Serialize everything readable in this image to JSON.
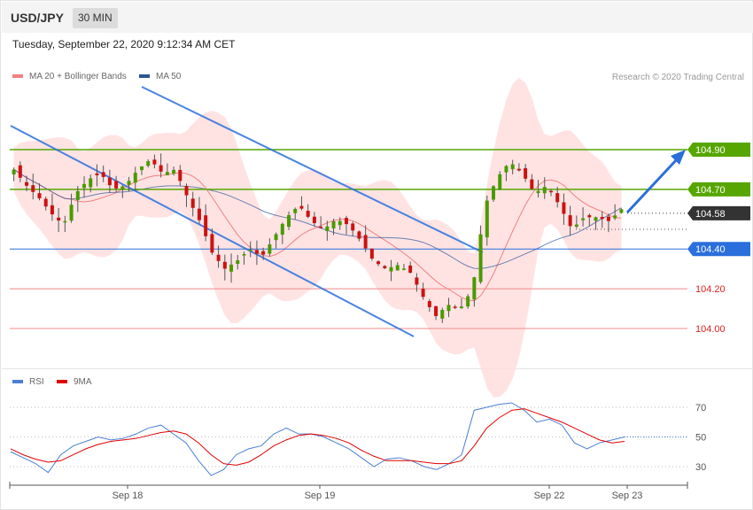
{
  "header": {
    "symbol": "USD/JPY",
    "timeframe": "30 MIN"
  },
  "datetime": "Tuesday, September 22, 2020 9:12:34 AM CET",
  "legend": {
    "ma20": {
      "label": "MA 20 + Bollinger Bands",
      "color": "#f08080"
    },
    "ma50": {
      "label": "MA 50",
      "color": "#2e5597"
    }
  },
  "credit": "Research © 2020 Trading Central",
  "rsi_legend": {
    "rsi": {
      "label": "RSI",
      "color": "#4a7fd4"
    },
    "ma9": {
      "label": "9MA",
      "color": "#e00000"
    }
  },
  "colors": {
    "green": "#57a600",
    "blue": "#2a6fdb",
    "red": "#e02020",
    "dark": "#333333",
    "up": "#4a9a00",
    "down": "#cc1111",
    "band": "#ffd9d9"
  },
  "levels": [
    {
      "value": 104.9,
      "label": "104.90",
      "kind": "resistance"
    },
    {
      "value": 104.7,
      "label": "104.70",
      "kind": "resistance"
    },
    {
      "value": 104.58,
      "label": "104.58",
      "kind": "last"
    },
    {
      "value": 104.4,
      "label": "104.40",
      "kind": "pivot"
    },
    {
      "value": 104.2,
      "label": "104.20",
      "kind": "support"
    },
    {
      "value": 104.0,
      "label": "104.00",
      "kind": "support"
    }
  ],
  "chart_data": [
    {
      "type": "candlestick",
      "title": "USD/JPY",
      "ylim": [
        103.8,
        105.2
      ],
      "x_ticks": [
        "Sep 18",
        "Sep 19",
        "Sep 22",
        "Sep 23"
      ],
      "price_samples": [
        104.8,
        104.72,
        104.66,
        104.58,
        104.52,
        104.68,
        104.75,
        104.78,
        104.7,
        104.72,
        104.8,
        104.85,
        104.78,
        104.8,
        104.66,
        104.54,
        104.38,
        104.3,
        104.34,
        104.4,
        104.36,
        104.46,
        104.56,
        104.62,
        104.54,
        104.5,
        104.55,
        104.52,
        104.44,
        104.34,
        104.3,
        104.32,
        104.28,
        104.16,
        104.06,
        104.12,
        104.1,
        104.2,
        104.62,
        104.76,
        104.84,
        104.78,
        104.68,
        104.72,
        104.62,
        104.5,
        104.56,
        104.56,
        104.54,
        104.6
      ],
      "last_price": 104.58,
      "series": [
        {
          "name": "MA 20 + Bollinger Bands"
        },
        {
          "name": "MA 50"
        }
      ]
    },
    {
      "type": "line",
      "title": "RSI",
      "ylim": [
        20,
        80
      ],
      "y_ticks": [
        30,
        50,
        70
      ],
      "series": [
        {
          "name": "RSI",
          "values": [
            40,
            36,
            32,
            26,
            38,
            44,
            47,
            50,
            48,
            49,
            52,
            56,
            58,
            52,
            46,
            34,
            24,
            28,
            38,
            42,
            44,
            52,
            56,
            52,
            52,
            50,
            46,
            42,
            36,
            30,
            35,
            36,
            34,
            30,
            28,
            32,
            38,
            68,
            70,
            72,
            73,
            68,
            60,
            62,
            58,
            46,
            42,
            46,
            48,
            50
          ]
        },
        {
          "name": "9MA",
          "values": [
            42,
            38,
            35,
            33,
            34,
            38,
            42,
            45,
            47,
            48,
            49,
            51,
            53,
            54,
            52,
            46,
            38,
            32,
            31,
            33,
            38,
            44,
            48,
            51,
            52,
            51,
            49,
            46,
            41,
            37,
            34,
            34,
            34,
            33,
            32,
            32,
            34,
            44,
            56,
            63,
            68,
            69,
            66,
            63,
            60,
            56,
            52,
            48,
            46,
            47
          ]
        }
      ]
    }
  ]
}
